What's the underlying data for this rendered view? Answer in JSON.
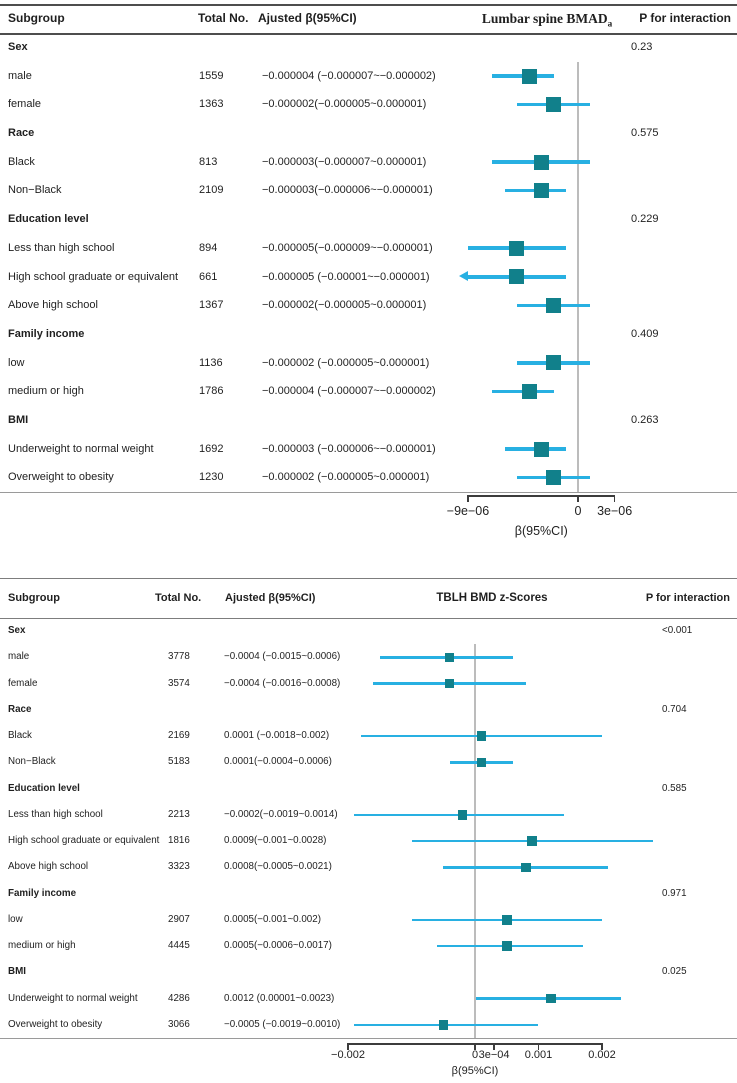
{
  "colors": {
    "ci_line": "#28b0e2",
    "marker": "#11808b",
    "ref_line": "#bcbcbc",
    "header_rule": "#4d4d4d",
    "header_rule2": "#7d7d7d",
    "table_rule": "#9a9a9a",
    "axis_line": "#3c3c3c",
    "text": "#1f1f1f"
  },
  "chart_data": [
    {
      "type": "forest",
      "title_main": "Lumbar spine BMAD",
      "title_sub": "a",
      "columns": {
        "subgroup": "Subgroup",
        "total_no": "Total No.",
        "beta": "Ajusted β(95%CI)",
        "p": "P for interaction"
      },
      "xlabel": "β(95%CI)",
      "axis_range": [
        -9e-06,
        3e-06
      ],
      "ref_value": 0,
      "xticks": [
        {
          "v": -9e-06,
          "label": "−9e−06"
        },
        {
          "v": 0,
          "label": "0"
        },
        {
          "v": 3e-06,
          "label": "3e−06"
        }
      ],
      "rows": [
        {
          "type": "group",
          "label": "Sex",
          "p": "0.23"
        },
        {
          "type": "item",
          "label": "male",
          "n": "1559",
          "beta": "−0.000004 (−0.000007~−0.000002)",
          "est": -4e-06,
          "lo": -7e-06,
          "hi": -2e-06
        },
        {
          "type": "item",
          "label": "female",
          "n": "1363",
          "beta": "−0.000002(−0.000005~0.000001)",
          "est": -2e-06,
          "lo": -5e-06,
          "hi": 1e-06
        },
        {
          "type": "group",
          "label": "Race",
          "p": "0.575"
        },
        {
          "type": "item",
          "label": "Black",
          "n": "813",
          "beta": "−0.000003(−0.000007~0.000001)",
          "est": -3e-06,
          "lo": -7e-06,
          "hi": 1e-06
        },
        {
          "type": "item",
          "label": "Non−Black",
          "n": "2109",
          "beta": "−0.000003(−0.000006~−0.000001)",
          "est": -3e-06,
          "lo": -6e-06,
          "hi": -1e-06
        },
        {
          "type": "group",
          "label": "Education level",
          "p": "0.229"
        },
        {
          "type": "item",
          "label": "Less than high school",
          "n": "894",
          "beta": "−0.000005(−0.000009~−0.000001)",
          "est": -5e-06,
          "lo": -9e-06,
          "hi": -1e-06
        },
        {
          "type": "item",
          "label": "High school graduate or equivalent",
          "n": "661",
          "beta": "−0.000005 (−0.00001~−0.000001)",
          "est": -5e-06,
          "lo": -1e-05,
          "hi": -1e-06,
          "clamp_lo": -9e-06,
          "arrow": "left"
        },
        {
          "type": "item",
          "label": "Above high school",
          "n": "1367",
          "beta": "−0.000002(−0.000005~0.000001)",
          "est": -2e-06,
          "lo": -5e-06,
          "hi": 1e-06
        },
        {
          "type": "group",
          "label": "Family income",
          "p": "0.409"
        },
        {
          "type": "item",
          "label": "low",
          "n": "1136",
          "beta": "−0.000002 (−0.000005~0.000001)",
          "est": -2e-06,
          "lo": -5e-06,
          "hi": 1e-06
        },
        {
          "type": "item",
          "label": "medium or high",
          "n": "1786",
          "beta": "−0.000004 (−0.000007~−0.000002)",
          "est": -4e-06,
          "lo": -7e-06,
          "hi": -2e-06
        },
        {
          "type": "group",
          "label": "BMI",
          "p": "0.263"
        },
        {
          "type": "item",
          "label": "Underweight to normal weight",
          "n": "1692",
          "beta": "−0.000003 (−0.000006~−0.000001)",
          "est": -3e-06,
          "lo": -6e-06,
          "hi": -1e-06
        },
        {
          "type": "item",
          "label": "Overweight to obesity",
          "n": "1230",
          "beta": "−0.000002 (−0.000005~0.000001)",
          "est": -2e-06,
          "lo": -5e-06,
          "hi": 1e-06
        }
      ]
    },
    {
      "type": "forest",
      "title_main": "TBLH BMD z-Scores",
      "title_sub": "",
      "columns": {
        "subgroup": "Subgroup",
        "total_no": "Total No.",
        "beta": "Ajusted β(95%CI)",
        "p": "P for interaction"
      },
      "xlabel": "β(95%CI)",
      "axis_range": [
        -0.002,
        0.002
      ],
      "ref_value": 0,
      "xticks": [
        {
          "v": -0.002,
          "label": "−0.002"
        },
        {
          "v": 0,
          "label": "0"
        },
        {
          "v": 0.0003,
          "label": "3e−04"
        },
        {
          "v": 0.001,
          "label": "0.001"
        },
        {
          "v": 0.002,
          "label": "0.002"
        }
      ],
      "rows": [
        {
          "type": "group",
          "label": "Sex",
          "p": "<0.001"
        },
        {
          "type": "item",
          "label": "male",
          "n": "3778",
          "beta": "−0.0004 (−0.0015~0.0006)",
          "est": -0.0004,
          "lo": -0.0015,
          "hi": 0.0006
        },
        {
          "type": "item",
          "label": "female",
          "n": "3574",
          "beta": "−0.0004 (−0.0016~0.0008)",
          "est": -0.0004,
          "lo": -0.0016,
          "hi": 0.0008
        },
        {
          "type": "group",
          "label": "Race",
          "p": "0.704"
        },
        {
          "type": "item",
          "label": "Black",
          "n": "2169",
          "beta": "0.0001 (−0.0018~0.002)",
          "est": 0.0001,
          "lo": -0.0018,
          "hi": 0.002
        },
        {
          "type": "item",
          "label": "Non−Black",
          "n": "5183",
          "beta": "0.0001(−0.0004~0.0006)",
          "est": 0.0001,
          "lo": -0.0004,
          "hi": 0.0006
        },
        {
          "type": "group",
          "label": "Education level",
          "p": "0.585"
        },
        {
          "type": "item",
          "label": "Less than high school",
          "n": "2213",
          "beta": "−0.0002(−0.0019~0.0014)",
          "est": -0.0002,
          "lo": -0.0019,
          "hi": 0.0014
        },
        {
          "type": "item",
          "label": "High school graduate or equivalent",
          "n": "1816",
          "beta": "0.0009(−0.001~0.0028)",
          "est": 0.0009,
          "lo": -0.001,
          "hi": 0.0028
        },
        {
          "type": "item",
          "label": "Above high school",
          "n": "3323",
          "beta": "0.0008(−0.0005~0.0021)",
          "est": 0.0008,
          "lo": -0.0005,
          "hi": 0.0021
        },
        {
          "type": "group",
          "label": "Family income",
          "p": "0.971"
        },
        {
          "type": "item",
          "label": "low",
          "n": "2907",
          "beta": "0.0005(−0.001~0.002)",
          "est": 0.0005,
          "lo": -0.001,
          "hi": 0.002
        },
        {
          "type": "item",
          "label": "medium or high",
          "n": "4445",
          "beta": "0.0005(−0.0006~0.0017)",
          "est": 0.0005,
          "lo": -0.0006,
          "hi": 0.0017
        },
        {
          "type": "group",
          "label": "BMI",
          "p": "0.025"
        },
        {
          "type": "item",
          "label": "Underweight to normal weight",
          "n": "4286",
          "beta": "0.0012 (0.00001~0.0023)",
          "est": 0.0012,
          "lo": 1e-05,
          "hi": 0.0023
        },
        {
          "type": "item",
          "label": "Overweight to obesity",
          "n": "3066",
          "beta": "−0.0005 (−0.0019~0.0010)",
          "est": -0.0005,
          "lo": -0.0019,
          "hi": 0.001
        }
      ]
    }
  ]
}
